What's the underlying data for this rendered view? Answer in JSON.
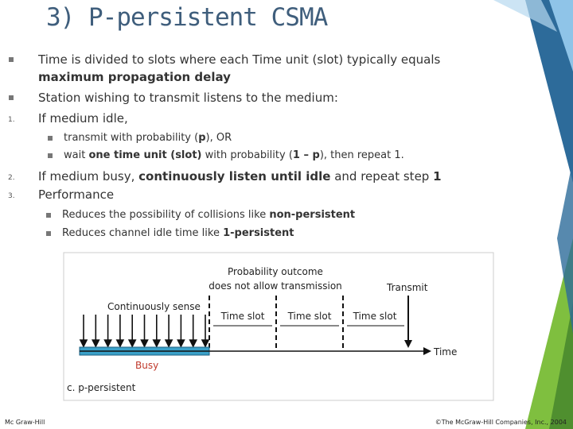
{
  "title": "3) P-persistent CSMA",
  "items": [
    {
      "level": 1,
      "segments": [
        {
          "text": "Time is divided to slots where each Time unit (slot) typically equals "
        },
        {
          "text": "maximum propagation delay",
          "bold": true
        }
      ]
    },
    {
      "level": 1,
      "segments": [
        {
          "text": "Station wishing to transmit listens to the medium:"
        }
      ]
    },
    {
      "level": 1,
      "number": "1.",
      "segments": [
        {
          "text": "If medium idle,"
        }
      ]
    },
    {
      "level": 2,
      "segments": [
        {
          "text": "transmit with probability ("
        },
        {
          "text": "p",
          "bold": true
        },
        {
          "text": "), OR"
        }
      ]
    },
    {
      "level": 2,
      "segments": [
        {
          "text": "wait "
        },
        {
          "text": "one time unit (slot)",
          "bold": true
        },
        {
          "text": " with probability ("
        },
        {
          "text": "1 – p",
          "bold": true
        },
        {
          "text": "), then repeat 1."
        }
      ]
    },
    {
      "level": 1,
      "number": "2.",
      "segments": [
        {
          "text": "If medium busy, "
        },
        {
          "text": "continuously listen until idle",
          "bold": true
        },
        {
          "text": " and repeat step "
        },
        {
          "text": "1",
          "bold": true
        }
      ]
    },
    {
      "level": 1,
      "number": "3.",
      "segments": [
        {
          "text": "Performance"
        }
      ]
    },
    {
      "level": 3,
      "segments": [
        {
          "text": "Reduces the possibility of collisions like "
        },
        {
          "text": "non-persistent",
          "bold": true
        }
      ]
    },
    {
      "level": 3,
      "segments": [
        {
          "text": "Reduces channel idle time like "
        },
        {
          "text": "1-persistent",
          "bold": true
        }
      ]
    }
  ],
  "figure": {
    "probability_line1": "Probability outcome",
    "probability_line2": "does not allow transmission",
    "transmit": "Transmit",
    "sense": "Continuously sense",
    "slots": [
      "Time slot",
      "Time slot",
      "Time slot"
    ],
    "time": "Time",
    "busy": "Busy",
    "caption": "c. p-persistent"
  },
  "footer": {
    "left": "Mc Graw-Hill",
    "right": "©The McGraw-Hill Companies, Inc., 2004"
  }
}
